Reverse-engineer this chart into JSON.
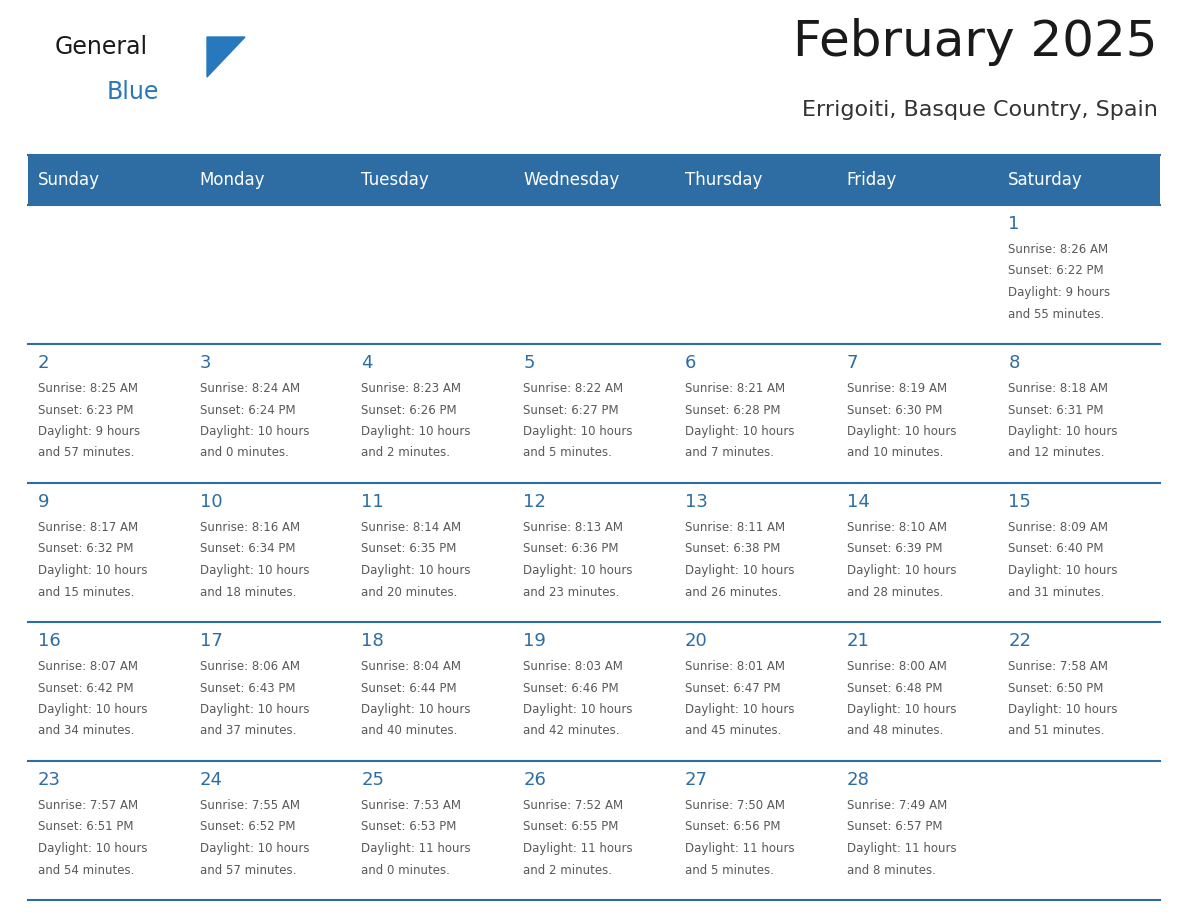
{
  "title": "February 2025",
  "subtitle": "Errigoiti, Basque Country, Spain",
  "header_bg": "#2E6DA4",
  "header_text_color": "#FFFFFF",
  "cell_bg": "#FFFFFF",
  "day_number_color": "#2E6DA4",
  "info_text_color": "#595959",
  "border_color": "#2E6DA4",
  "days_of_week": [
    "Sunday",
    "Monday",
    "Tuesday",
    "Wednesday",
    "Thursday",
    "Friday",
    "Saturday"
  ],
  "weeks": [
    [
      {
        "day": null,
        "sunrise": null,
        "sunset": null,
        "daylight_hours": null,
        "daylight_minutes": null
      },
      {
        "day": null,
        "sunrise": null,
        "sunset": null,
        "daylight_hours": null,
        "daylight_minutes": null
      },
      {
        "day": null,
        "sunrise": null,
        "sunset": null,
        "daylight_hours": null,
        "daylight_minutes": null
      },
      {
        "day": null,
        "sunrise": null,
        "sunset": null,
        "daylight_hours": null,
        "daylight_minutes": null
      },
      {
        "day": null,
        "sunrise": null,
        "sunset": null,
        "daylight_hours": null,
        "daylight_minutes": null
      },
      {
        "day": null,
        "sunrise": null,
        "sunset": null,
        "daylight_hours": null,
        "daylight_minutes": null
      },
      {
        "day": 1,
        "sunrise": "8:26 AM",
        "sunset": "6:22 PM",
        "daylight_hours": 9,
        "daylight_minutes": 55
      }
    ],
    [
      {
        "day": 2,
        "sunrise": "8:25 AM",
        "sunset": "6:23 PM",
        "daylight_hours": 9,
        "daylight_minutes": 57
      },
      {
        "day": 3,
        "sunrise": "8:24 AM",
        "sunset": "6:24 PM",
        "daylight_hours": 10,
        "daylight_minutes": 0
      },
      {
        "day": 4,
        "sunrise": "8:23 AM",
        "sunset": "6:26 PM",
        "daylight_hours": 10,
        "daylight_minutes": 2
      },
      {
        "day": 5,
        "sunrise": "8:22 AM",
        "sunset": "6:27 PM",
        "daylight_hours": 10,
        "daylight_minutes": 5
      },
      {
        "day": 6,
        "sunrise": "8:21 AM",
        "sunset": "6:28 PM",
        "daylight_hours": 10,
        "daylight_minutes": 7
      },
      {
        "day": 7,
        "sunrise": "8:19 AM",
        "sunset": "6:30 PM",
        "daylight_hours": 10,
        "daylight_minutes": 10
      },
      {
        "day": 8,
        "sunrise": "8:18 AM",
        "sunset": "6:31 PM",
        "daylight_hours": 10,
        "daylight_minutes": 12
      }
    ],
    [
      {
        "day": 9,
        "sunrise": "8:17 AM",
        "sunset": "6:32 PM",
        "daylight_hours": 10,
        "daylight_minutes": 15
      },
      {
        "day": 10,
        "sunrise": "8:16 AM",
        "sunset": "6:34 PM",
        "daylight_hours": 10,
        "daylight_minutes": 18
      },
      {
        "day": 11,
        "sunrise": "8:14 AM",
        "sunset": "6:35 PM",
        "daylight_hours": 10,
        "daylight_minutes": 20
      },
      {
        "day": 12,
        "sunrise": "8:13 AM",
        "sunset": "6:36 PM",
        "daylight_hours": 10,
        "daylight_minutes": 23
      },
      {
        "day": 13,
        "sunrise": "8:11 AM",
        "sunset": "6:38 PM",
        "daylight_hours": 10,
        "daylight_minutes": 26
      },
      {
        "day": 14,
        "sunrise": "8:10 AM",
        "sunset": "6:39 PM",
        "daylight_hours": 10,
        "daylight_minutes": 28
      },
      {
        "day": 15,
        "sunrise": "8:09 AM",
        "sunset": "6:40 PM",
        "daylight_hours": 10,
        "daylight_minutes": 31
      }
    ],
    [
      {
        "day": 16,
        "sunrise": "8:07 AM",
        "sunset": "6:42 PM",
        "daylight_hours": 10,
        "daylight_minutes": 34
      },
      {
        "day": 17,
        "sunrise": "8:06 AM",
        "sunset": "6:43 PM",
        "daylight_hours": 10,
        "daylight_minutes": 37
      },
      {
        "day": 18,
        "sunrise": "8:04 AM",
        "sunset": "6:44 PM",
        "daylight_hours": 10,
        "daylight_minutes": 40
      },
      {
        "day": 19,
        "sunrise": "8:03 AM",
        "sunset": "6:46 PM",
        "daylight_hours": 10,
        "daylight_minutes": 42
      },
      {
        "day": 20,
        "sunrise": "8:01 AM",
        "sunset": "6:47 PM",
        "daylight_hours": 10,
        "daylight_minutes": 45
      },
      {
        "day": 21,
        "sunrise": "8:00 AM",
        "sunset": "6:48 PM",
        "daylight_hours": 10,
        "daylight_minutes": 48
      },
      {
        "day": 22,
        "sunrise": "7:58 AM",
        "sunset": "6:50 PM",
        "daylight_hours": 10,
        "daylight_minutes": 51
      }
    ],
    [
      {
        "day": 23,
        "sunrise": "7:57 AM",
        "sunset": "6:51 PM",
        "daylight_hours": 10,
        "daylight_minutes": 54
      },
      {
        "day": 24,
        "sunrise": "7:55 AM",
        "sunset": "6:52 PM",
        "daylight_hours": 10,
        "daylight_minutes": 57
      },
      {
        "day": 25,
        "sunrise": "7:53 AM",
        "sunset": "6:53 PM",
        "daylight_hours": 11,
        "daylight_minutes": 0
      },
      {
        "day": 26,
        "sunrise": "7:52 AM",
        "sunset": "6:55 PM",
        "daylight_hours": 11,
        "daylight_minutes": 2
      },
      {
        "day": 27,
        "sunrise": "7:50 AM",
        "sunset": "6:56 PM",
        "daylight_hours": 11,
        "daylight_minutes": 5
      },
      {
        "day": 28,
        "sunrise": "7:49 AM",
        "sunset": "6:57 PM",
        "daylight_hours": 11,
        "daylight_minutes": 8
      },
      {
        "day": null,
        "sunrise": null,
        "sunset": null,
        "daylight_hours": null,
        "daylight_minutes": null
      }
    ]
  ],
  "logo_text_general": "General",
  "logo_text_blue": "Blue",
  "logo_color_general": "#1a1a1a",
  "logo_color_blue": "#2878BE",
  "logo_triangle_color": "#2878BE",
  "title_fontsize": 36,
  "subtitle_fontsize": 16,
  "dow_fontsize": 12,
  "day_num_fontsize": 13,
  "info_fontsize": 8.5
}
